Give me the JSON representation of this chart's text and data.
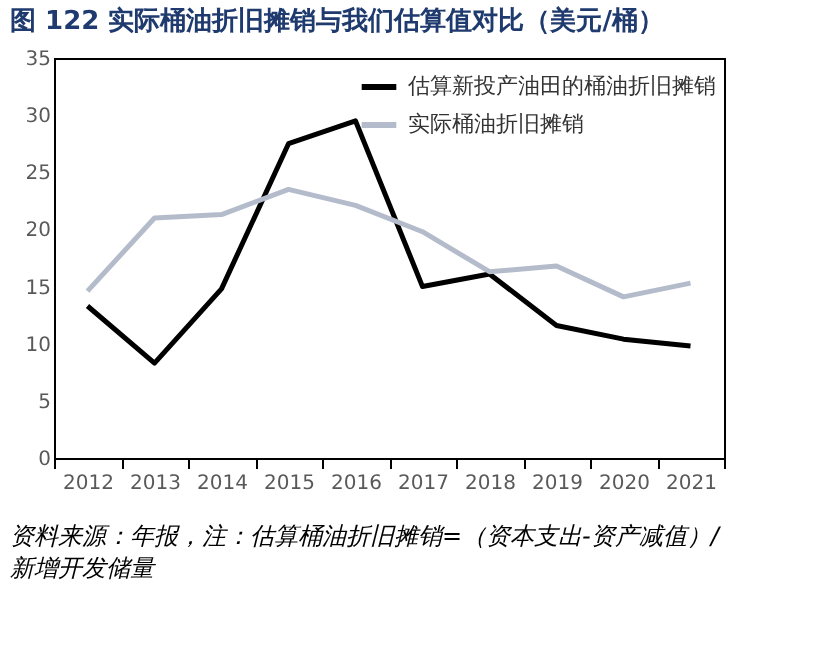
{
  "chart_data": {
    "type": "line",
    "title": "图 122 实际桶油折旧摊销与我们估算值对比（美元/桶）",
    "categories": [
      "2012",
      "2013",
      "2014",
      "2015",
      "2016",
      "2017",
      "2018",
      "2019",
      "2020",
      "2021"
    ],
    "series": [
      {
        "name": "估算新投产油田的桶油折旧摊销",
        "color": "#000000",
        "values": [
          13.3,
          8.3,
          14.8,
          27.5,
          29.5,
          15.0,
          16.1,
          11.6,
          10.4,
          9.8
        ]
      },
      {
        "name": "实际桶油折旧摊销",
        "color": "#b4bccb",
        "values": [
          14.6,
          21.0,
          21.3,
          23.5,
          22.1,
          19.8,
          16.3,
          16.8,
          14.1,
          15.3
        ]
      }
    ],
    "ylim": [
      0,
      35
    ],
    "yticks": [
      0,
      5,
      10,
      15,
      20,
      25,
      30,
      35
    ],
    "grid": false,
    "legend": "top right",
    "marker": "none",
    "line_style": "solid",
    "annotations": [
      "资料来源：年报，注：估算桶油折旧摊销=（资本支出-资产减值）/新增开发储量"
    ]
  }
}
